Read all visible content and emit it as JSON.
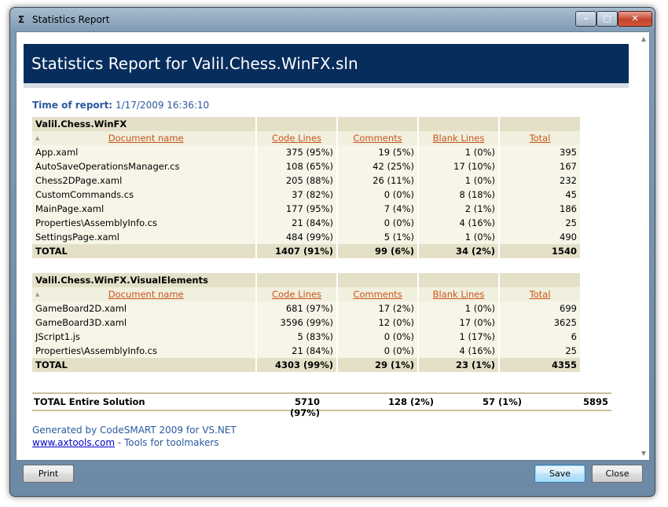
{
  "window": {
    "title": "Statistics Report",
    "icon": "sigma-icon"
  },
  "report": {
    "heading": "Statistics Report for Valil.Chess.WinFX.sln",
    "time_label": "Time of report:",
    "time_value": "1/17/2009 16:36:10"
  },
  "columns": {
    "doc": "Document name",
    "code": "Code Lines",
    "comments": "Comments",
    "blank": "Blank Lines",
    "total": "Total"
  },
  "projects": [
    {
      "name": "Valil.Chess.WinFX",
      "rows": [
        [
          "App.xaml",
          "375 (95%)",
          "19 (5%)",
          "1 (0%)",
          "395"
        ],
        [
          "AutoSaveOperationsManager.cs",
          "108 (65%)",
          "42 (25%)",
          "17 (10%)",
          "167"
        ],
        [
          "Chess2DPage.xaml",
          "205 (88%)",
          "26 (11%)",
          "1 (0%)",
          "232"
        ],
        [
          "CustomCommands.cs",
          "37 (82%)",
          "0 (0%)",
          "8 (18%)",
          "45"
        ],
        [
          "MainPage.xaml",
          "177 (95%)",
          "7 (4%)",
          "2 (1%)",
          "186"
        ],
        [
          "Properties\\AssemblyInfo.cs",
          "21 (84%)",
          "0 (0%)",
          "4 (16%)",
          "25"
        ],
        [
          "SettingsPage.xaml",
          "484 (99%)",
          "5 (1%)",
          "1 (0%)",
          "490"
        ]
      ],
      "total": [
        "TOTAL",
        "1407 (91%)",
        "99 (6%)",
        "34 (2%)",
        "1540"
      ]
    },
    {
      "name": "Valil.Chess.WinFX.VisualElements",
      "rows": [
        [
          "GameBoard2D.xaml",
          "681 (97%)",
          "17 (2%)",
          "1 (0%)",
          "699"
        ],
        [
          "GameBoard3D.xaml",
          "3596 (99%)",
          "12 (0%)",
          "17 (0%)",
          "3625"
        ],
        [
          "JScript1.js",
          "5 (83%)",
          "0 (0%)",
          "1 (17%)",
          "6"
        ],
        [
          "Properties\\AssemblyInfo.cs",
          "21 (84%)",
          "0 (0%)",
          "4 (16%)",
          "25"
        ]
      ],
      "total": [
        "TOTAL",
        "4303 (99%)",
        "29 (1%)",
        "23 (1%)",
        "4355"
      ]
    }
  ],
  "solution_total": [
    "TOTAL Entire Solution",
    "5710 (97%)",
    "128 (2%)",
    "57 (1%)",
    "5895"
  ],
  "footer": {
    "generated": "Generated by CodeSMART 2009 for VS.NET",
    "link": "www.axtools.com",
    "tagline": " - Tools for toolmakers"
  },
  "buttons": {
    "print": "Print",
    "save": "Save",
    "close": "Close"
  },
  "colors": {
    "header_bg": "#072d5d",
    "group_bg": "#e4e0c8",
    "link": "#c8551b"
  }
}
